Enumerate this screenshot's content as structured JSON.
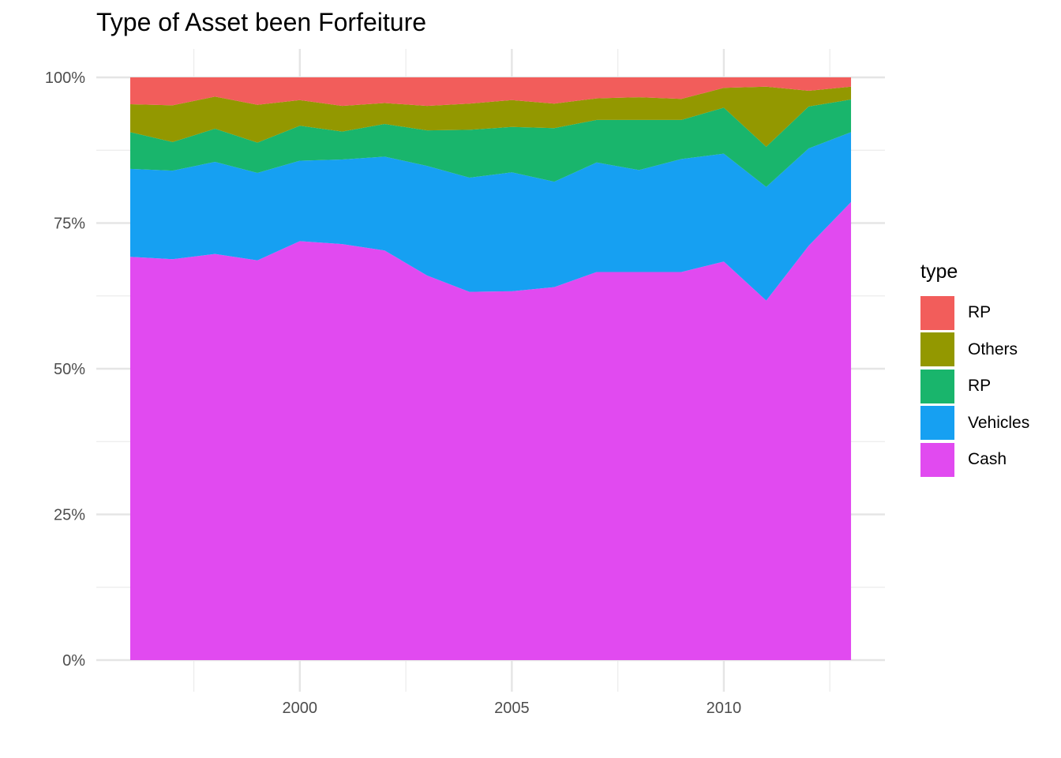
{
  "chart_data": {
    "type": "area",
    "stacked": "percent",
    "title": "Type of Asset been Forfeiture",
    "xlabel": "",
    "ylabel": "",
    "x": [
      1996,
      1997,
      1998,
      1999,
      2000,
      2001,
      2002,
      2003,
      2004,
      2005,
      2006,
      2007,
      2008,
      2009,
      2010,
      2011,
      2012,
      2013
    ],
    "xlim": [
      1995.2,
      2013.8
    ],
    "ylim": [
      0,
      1
    ],
    "x_ticks": [
      2000,
      2005,
      2010
    ],
    "x_tick_labels": [
      "2000",
      "2005",
      "2010"
    ],
    "y_ticks": [
      0,
      0.25,
      0.5,
      0.75,
      1
    ],
    "y_tick_labels": [
      "0%",
      "25%",
      "50%",
      "75%",
      "100%"
    ],
    "grid": true,
    "legend_title": "type",
    "legend_position": "right",
    "series": [
      {
        "name": "Cash",
        "color": "#E14AF0",
        "values": [
          0.692,
          0.688,
          0.697,
          0.686,
          0.719,
          0.714,
          0.703,
          0.66,
          0.632,
          0.633,
          0.64,
          0.666,
          0.666,
          0.666,
          0.684,
          0.617,
          0.711,
          0.786
        ]
      },
      {
        "name": "Vehicles",
        "color": "#16A0F2",
        "values": [
          0.151,
          0.152,
          0.158,
          0.15,
          0.138,
          0.145,
          0.161,
          0.188,
          0.196,
          0.204,
          0.181,
          0.188,
          0.175,
          0.194,
          0.185,
          0.195,
          0.167,
          0.12
        ]
      },
      {
        "name": "RP",
        "color": "#19B56C",
        "values": [
          0.063,
          0.049,
          0.057,
          0.052,
          0.06,
          0.048,
          0.056,
          0.061,
          0.082,
          0.078,
          0.092,
          0.073,
          0.086,
          0.067,
          0.079,
          0.069,
          0.072,
          0.056
        ]
      },
      {
        "name": "Others",
        "color": "#939800",
        "values": [
          0.048,
          0.063,
          0.055,
          0.065,
          0.044,
          0.044,
          0.036,
          0.042,
          0.045,
          0.046,
          0.042,
          0.037,
          0.039,
          0.036,
          0.034,
          0.103,
          0.027,
          0.022
        ]
      },
      {
        "name": "RP",
        "color": "#F25D5B",
        "values": [
          0.046,
          0.048,
          0.033,
          0.047,
          0.039,
          0.049,
          0.044,
          0.049,
          0.045,
          0.039,
          0.045,
          0.036,
          0.034,
          0.037,
          0.018,
          0.016,
          0.023,
          0.016
        ]
      }
    ]
  }
}
